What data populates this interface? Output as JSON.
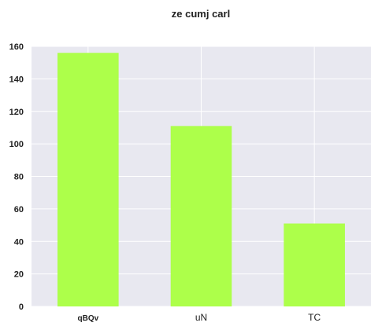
{
  "chart_data": {
    "type": "bar",
    "title": "ze cumj carl",
    "xlabel": "",
    "ylabel": "",
    "categories": [
      "qBQv",
      "uN",
      "TC"
    ],
    "values": [
      156,
      111,
      51
    ],
    "ylim": [
      0,
      160
    ],
    "yticks": [
      0,
      20,
      40,
      60,
      80,
      100,
      120,
      140,
      160
    ],
    "grid": true,
    "colors": {
      "bar": "#adff4a",
      "plot_background": "#e8e8f0",
      "grid": "#ffffff"
    }
  }
}
